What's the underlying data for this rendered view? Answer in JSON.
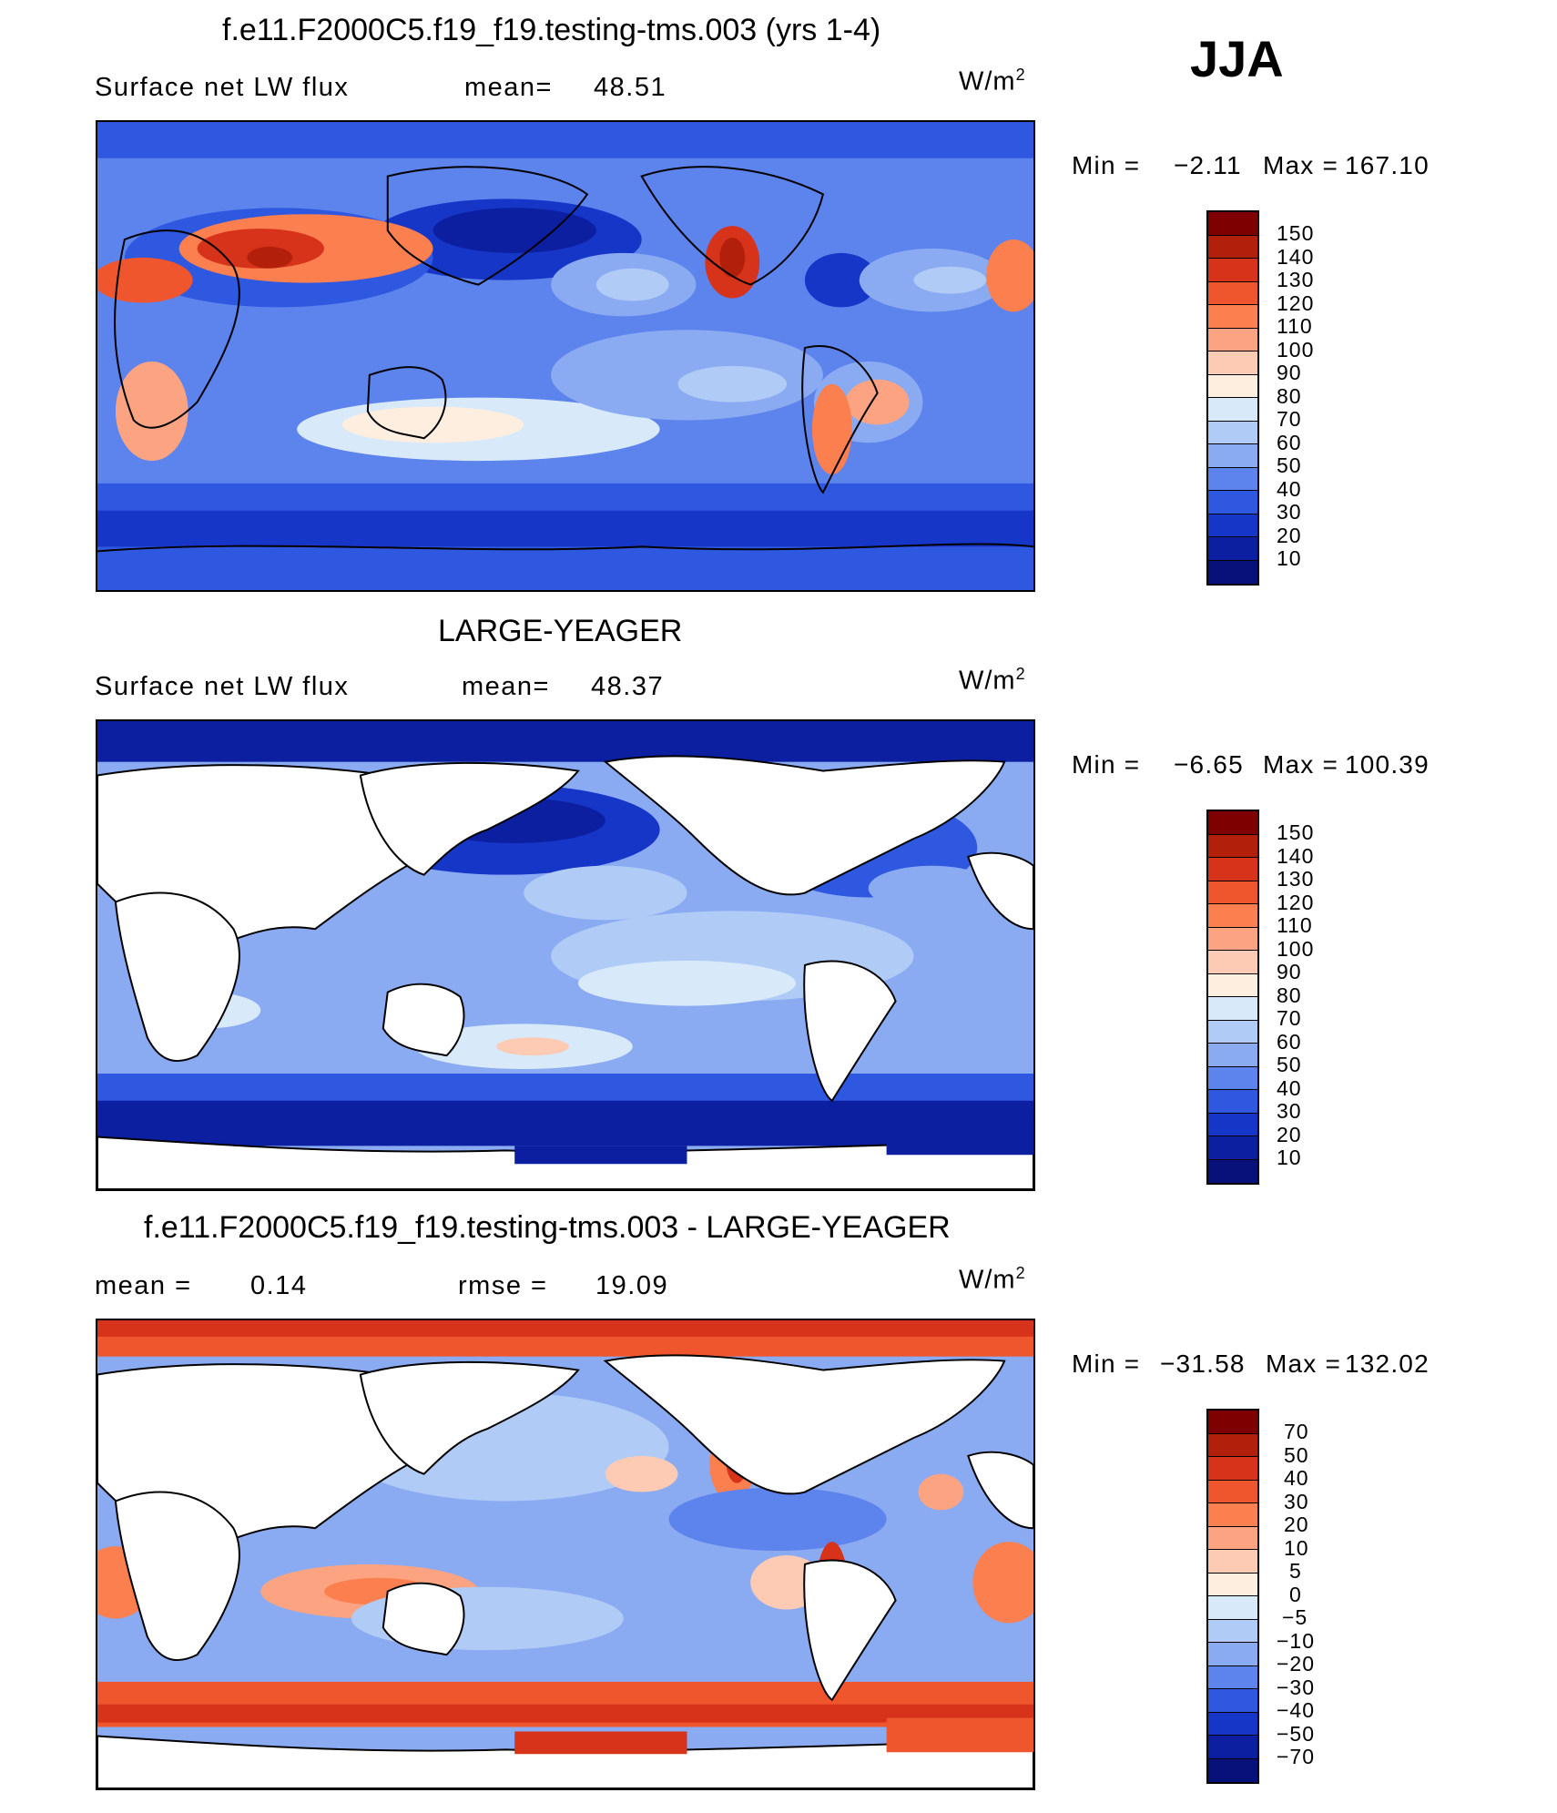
{
  "season": "JJA",
  "colorbar_abs": {
    "labels": [
      "150",
      "140",
      "130",
      "120",
      "110",
      "100",
      "90",
      "80",
      "70",
      "60",
      "50",
      "40",
      "30",
      "20",
      "10"
    ],
    "colors": [
      "#7f0000",
      "#b21f0a",
      "#d7321a",
      "#f0562e",
      "#fb7f4f",
      "#fca482",
      "#fdcab3",
      "#feeedf",
      "#d8eafa",
      "#b0cbf6",
      "#8aabf2",
      "#5d83ec",
      "#2f58e0",
      "#1636c8",
      "#0c1fa0",
      "#061279"
    ]
  },
  "colorbar_diff": {
    "labels": [
      "70",
      "50",
      "40",
      "30",
      "20",
      "10",
      "5",
      "0",
      "−5",
      "−10",
      "−20",
      "−30",
      "−40",
      "−50",
      "−70"
    ],
    "colors": [
      "#7f0000",
      "#b21f0a",
      "#d7321a",
      "#f0562e",
      "#fb7f4f",
      "#fca482",
      "#fdcab3",
      "#feeedf",
      "#d8eafa",
      "#b0cbf6",
      "#8aabf2",
      "#5d83ec",
      "#2f58e0",
      "#1636c8",
      "#0c1fa0",
      "#061279"
    ]
  },
  "panels": [
    {
      "title": "f.e11.F2000C5.f19_f19.testing-tms.003 (yrs 1-4)",
      "variable": "Surface net LW flux",
      "stat1_label": "mean=",
      "stat1_value": "48.51",
      "units_base": "W/m",
      "units_exp": "2",
      "min_label": "Min =",
      "min_value": "−2.11",
      "max_label": "Max =",
      "max_value": "167.10"
    },
    {
      "title": "LARGE-YEAGER",
      "variable": "Surface net LW flux",
      "stat1_label": "mean=",
      "stat1_value": "48.37",
      "units_base": "W/m",
      "units_exp": "2",
      "min_label": "Min =",
      "min_value": "−6.65",
      "max_label": "Max =",
      "max_value": "100.39"
    },
    {
      "title": "f.e11.F2000C5.f19_f19.testing-tms.003 - LARGE-YEAGER",
      "stat1_label": "mean =",
      "stat1_value": "0.14",
      "stat2_label": "rmse =",
      "stat2_value": "19.09",
      "units_base": "W/m",
      "units_exp": "2",
      "min_label": "Min =",
      "min_value": "−31.58",
      "max_label": "Max =",
      "max_value": "132.02"
    }
  ]
}
